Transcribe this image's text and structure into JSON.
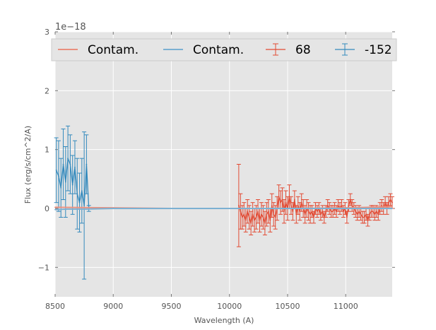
{
  "chart_data": {
    "type": "line",
    "xlabel": "Wavelength (A)",
    "ylabel": "Flux (erg/s/cm^2/A)",
    "offset_label": "1e−18",
    "xlim": [
      8500,
      11400
    ],
    "ylim": [
      -1.5,
      3.0
    ],
    "x_ticks": [
      8500,
      9000,
      9500,
      10000,
      10500,
      11000
    ],
    "x_tick_labels": [
      "8500",
      "9000",
      "9500",
      "10000",
      "10500",
      "11000"
    ],
    "y_ticks": [
      -1,
      0,
      1,
      2,
      3
    ],
    "y_tick_labels": [
      "−1",
      "0",
      "1",
      "2",
      "3"
    ],
    "grid": true,
    "legend_location": "top",
    "colors": {
      "red": "#e24a33",
      "blue": "#348abd",
      "red_light": "#e9907f",
      "blue_light": "#7cb0d2",
      "axes_bg": "#e5e5e5",
      "grid": "#ffffff"
    },
    "series": [
      {
        "name": "Contam.",
        "kind": "line",
        "color": "#e9907f",
        "x": [
          8500,
          9000,
          9500,
          10000,
          10500,
          11000,
          11400
        ],
        "y": [
          0.02,
          0.01,
          0.0,
          0.0,
          0.0,
          0.01,
          0.03
        ]
      },
      {
        "name": "Contam.",
        "kind": "line",
        "color": "#7cb0d2",
        "x": [
          8500,
          8600,
          8780,
          9000,
          9500,
          10000,
          10500,
          11000,
          11400
        ],
        "y": [
          -0.02,
          -0.01,
          -0.01,
          0.0,
          0.0,
          0.0,
          0.0,
          0.0,
          0.0
        ]
      },
      {
        "name": "68",
        "kind": "errorbar",
        "color": "#e24a33",
        "x": [
          10080,
          10095,
          10110,
          10125,
          10140,
          10155,
          10170,
          10185,
          10200,
          10215,
          10230,
          10245,
          10260,
          10275,
          10290,
          10305,
          10320,
          10335,
          10350,
          10365,
          10380,
          10395,
          10410,
          10425,
          10440,
          10455,
          10470,
          10485,
          10500,
          10515,
          10530,
          10545,
          10560,
          10575,
          10590,
          10605,
          10620,
          10635,
          10650,
          10665,
          10680,
          10695,
          10710,
          10725,
          10740,
          10755,
          10770,
          10785,
          10800,
          10815,
          10830,
          10845,
          10860,
          10875,
          10890,
          10905,
          10920,
          10935,
          10950,
          10965,
          10980,
          10995,
          11010,
          11025,
          11040,
          11055,
          11070,
          11085,
          11100,
          11115,
          11130,
          11145,
          11160,
          11175,
          11190,
          11205,
          11220,
          11235,
          11250,
          11265,
          11280,
          11295,
          11310,
          11325,
          11340,
          11355,
          11370,
          11385,
          11400
        ],
        "y": [
          0.05,
          -0.05,
          -0.15,
          -0.1,
          -0.2,
          -0.05,
          -0.15,
          -0.25,
          -0.1,
          -0.2,
          -0.15,
          -0.05,
          -0.2,
          -0.1,
          -0.15,
          -0.25,
          -0.1,
          -0.05,
          -0.2,
          0.05,
          -0.1,
          -0.15,
          0.0,
          0.2,
          0.1,
          0.15,
          -0.05,
          0.1,
          0.0,
          0.2,
          0.05,
          -0.05,
          0.15,
          -0.1,
          0.05,
          -0.05,
          0.1,
          0.0,
          -0.1,
          0.0,
          -0.05,
          -0.1,
          -0.05,
          -0.15,
          0.0,
          -0.05,
          0.0,
          -0.1,
          -0.05,
          -0.15,
          -0.05,
          0.05,
          0.0,
          -0.05,
          -0.05,
          0.0,
          -0.05,
          0.05,
          0.0,
          0.05,
          -0.05,
          0.0,
          -0.15,
          0.05,
          0.15,
          0.05,
          0.0,
          -0.05,
          -0.1,
          -0.05,
          -0.1,
          -0.15,
          -0.15,
          -0.1,
          -0.2,
          -0.1,
          -0.05,
          -0.05,
          -0.1,
          -0.05,
          -0.1,
          0.0,
          0.05,
          0.0,
          0.1,
          0.0,
          0.1,
          0.15,
          0.1
        ],
        "err": [
          0.7,
          0.3,
          0.2,
          0.2,
          0.2,
          0.2,
          0.2,
          0.2,
          0.2,
          0.2,
          0.2,
          0.2,
          0.2,
          0.2,
          0.2,
          0.2,
          0.2,
          0.2,
          0.2,
          0.2,
          0.2,
          0.2,
          0.2,
          0.2,
          0.2,
          0.2,
          0.2,
          0.2,
          0.2,
          0.2,
          0.15,
          0.15,
          0.15,
          0.15,
          0.15,
          0.15,
          0.15,
          0.15,
          0.15,
          0.15,
          0.15,
          0.15,
          0.1,
          0.1,
          0.1,
          0.1,
          0.1,
          0.1,
          0.1,
          0.1,
          0.1,
          0.1,
          0.1,
          0.1,
          0.1,
          0.1,
          0.1,
          0.1,
          0.1,
          0.1,
          0.1,
          0.1,
          0.1,
          0.1,
          0.1,
          0.1,
          0.1,
          0.1,
          0.1,
          0.1,
          0.1,
          0.1,
          0.1,
          0.1,
          0.1,
          0.1,
          0.1,
          0.1,
          0.1,
          0.1,
          0.1,
          0.1,
          0.1,
          0.1,
          0.1,
          0.1,
          0.1,
          0.1,
          0.1
        ]
      },
      {
        "name": "-152",
        "kind": "errorbar",
        "color": "#348abd",
        "x": [
          8510,
          8530,
          8550,
          8570,
          8590,
          8610,
          8630,
          8650,
          8670,
          8690,
          8710,
          8730,
          8750,
          8770,
          8790
        ],
        "y": [
          0.65,
          0.55,
          0.35,
          0.75,
          0.45,
          0.85,
          0.75,
          0.4,
          0.7,
          0.25,
          0.1,
          0.3,
          0.05,
          0.75,
          0.0
        ],
        "err": [
          0.55,
          0.6,
          0.5,
          0.6,
          0.6,
          0.55,
          0.5,
          0.5,
          0.45,
          0.6,
          0.5,
          0.55,
          1.25,
          0.5,
          0.05
        ]
      }
    ]
  }
}
